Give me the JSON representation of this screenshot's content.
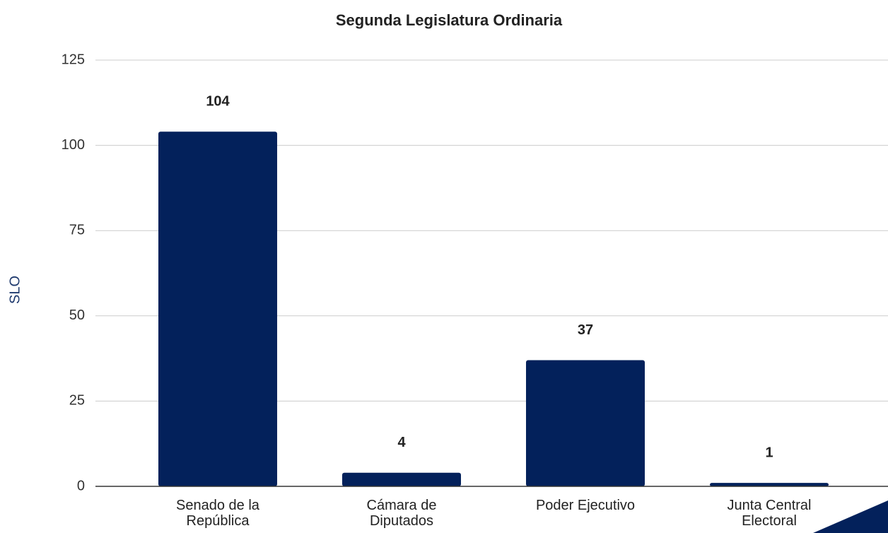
{
  "chart_data": {
    "type": "bar",
    "title": "Segunda Legislatura Ordinaria",
    "y_label": "SLO",
    "categories": [
      "Senado de la República",
      "Cámara de Diputados",
      "Poder Ejecutivo",
      "Junta Central Electoral"
    ],
    "values": [
      104,
      4,
      37,
      1
    ],
    "color": "#03215b",
    "ylim": [
      0,
      125
    ],
    "yticks": [
      0,
      25,
      50,
      75,
      100,
      125
    ],
    "grid": true
  }
}
